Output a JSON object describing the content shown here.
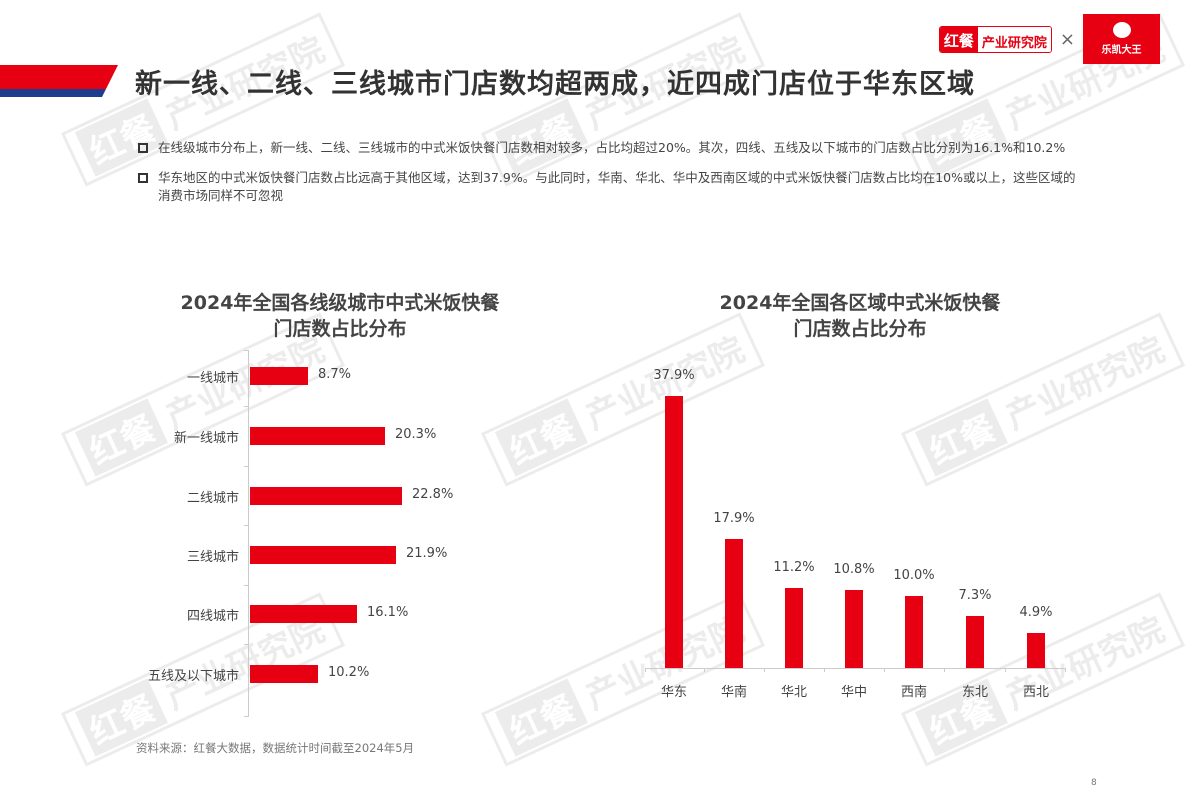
{
  "header": {
    "title": "新一线、二线、三线城市门店数均超两成，近四成门店位于华东区域",
    "stripe_colors": {
      "red": "#e60012",
      "blue": "#1d3d8f"
    },
    "logo": {
      "brand_red_part": "红餐",
      "brand_text": "产业研究院",
      "separator": "×",
      "partner_name": "乐凯大王"
    }
  },
  "bullets": [
    {
      "text": "在线级城市分布上，新一线、二线、三线城市的中式米饭快餐门店数相对较多，占比均超过20%。其次，四线、五线及以下城市的门店数占比分别为16.1%和10.2%"
    },
    {
      "text": "华东地区的中式米饭快餐门店数占比远高于其他区域，达到37.9%。与此同时，华南、华北、华中及西南区域的中式米饭快餐门店数占比均在10%或以上，这些区域的消费市场同样不可忽视"
    }
  ],
  "watermark": {
    "red_part": "红餐",
    "text": "产业研究院"
  },
  "colors": {
    "bar": "#e60012",
    "text": "#444444",
    "axis": "#cccccc"
  },
  "chart_data": [
    {
      "type": "bar",
      "orientation": "horizontal",
      "title": "2024年全国各线级城市中式米饭快餐门店数占比分布",
      "title_lines": [
        "2024年全国各线级城市中式米饭快餐",
        "门店数占比分布"
      ],
      "categories": [
        "一线城市",
        "新一线城市",
        "二线城市",
        "三线城市",
        "四线城市",
        "五线及以下城市"
      ],
      "values": [
        8.7,
        20.3,
        22.8,
        21.9,
        16.1,
        10.2
      ],
      "labels": [
        "8.7%",
        "20.3%",
        "22.8%",
        "21.9%",
        "16.1%",
        "10.2%"
      ],
      "unit": "%",
      "xlabel": "",
      "ylabel": "",
      "grid": false,
      "legend": "none"
    },
    {
      "type": "bar",
      "orientation": "vertical",
      "title": "2024年全国各区域中式米饭快餐门店数占比分布",
      "title_lines": [
        "2024年全国各区域中式米饭快餐",
        "门店数占比分布"
      ],
      "categories": [
        "华东",
        "华南",
        "华北",
        "华中",
        "西南",
        "东北",
        "西北"
      ],
      "values": [
        37.9,
        17.9,
        11.2,
        10.8,
        10.0,
        7.3,
        4.9
      ],
      "labels": [
        "37.9%",
        "17.9%",
        "11.2%",
        "10.8%",
        "10.0%",
        "7.3%",
        "4.9%"
      ],
      "unit": "%",
      "xlabel": "",
      "ylabel": "",
      "grid": false,
      "legend": "none"
    }
  ],
  "footer": {
    "source": "资料来源：红餐大数据，数据统计时间截至2024年5月",
    "page_number": "8"
  }
}
